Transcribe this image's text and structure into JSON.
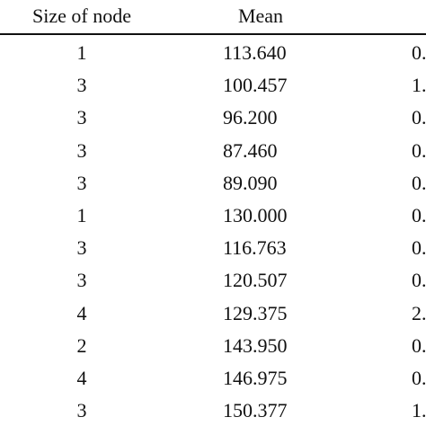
{
  "table": {
    "headers": {
      "size": "Size of node",
      "mean": "Mean"
    },
    "rows": [
      {
        "size": "1",
        "mean": "113.640",
        "third": "0."
      },
      {
        "size": "3",
        "mean": "100.457",
        "third": "1."
      },
      {
        "size": "3",
        "mean": "96.200",
        "third": "0."
      },
      {
        "size": "3",
        "mean": "87.460",
        "third": "0."
      },
      {
        "size": "3",
        "mean": "89.090",
        "third": "0."
      },
      {
        "size": "1",
        "mean": "130.000",
        "third": "0."
      },
      {
        "size": "3",
        "mean": "116.763",
        "third": "0."
      },
      {
        "size": "3",
        "mean": "120.507",
        "third": "0."
      },
      {
        "size": "4",
        "mean": "129.375",
        "third": "2."
      },
      {
        "size": "2",
        "mean": "143.950",
        "third": "0."
      },
      {
        "size": "4",
        "mean": "146.975",
        "third": "0."
      },
      {
        "size": "3",
        "mean": "150.377",
        "third": "1."
      }
    ]
  }
}
